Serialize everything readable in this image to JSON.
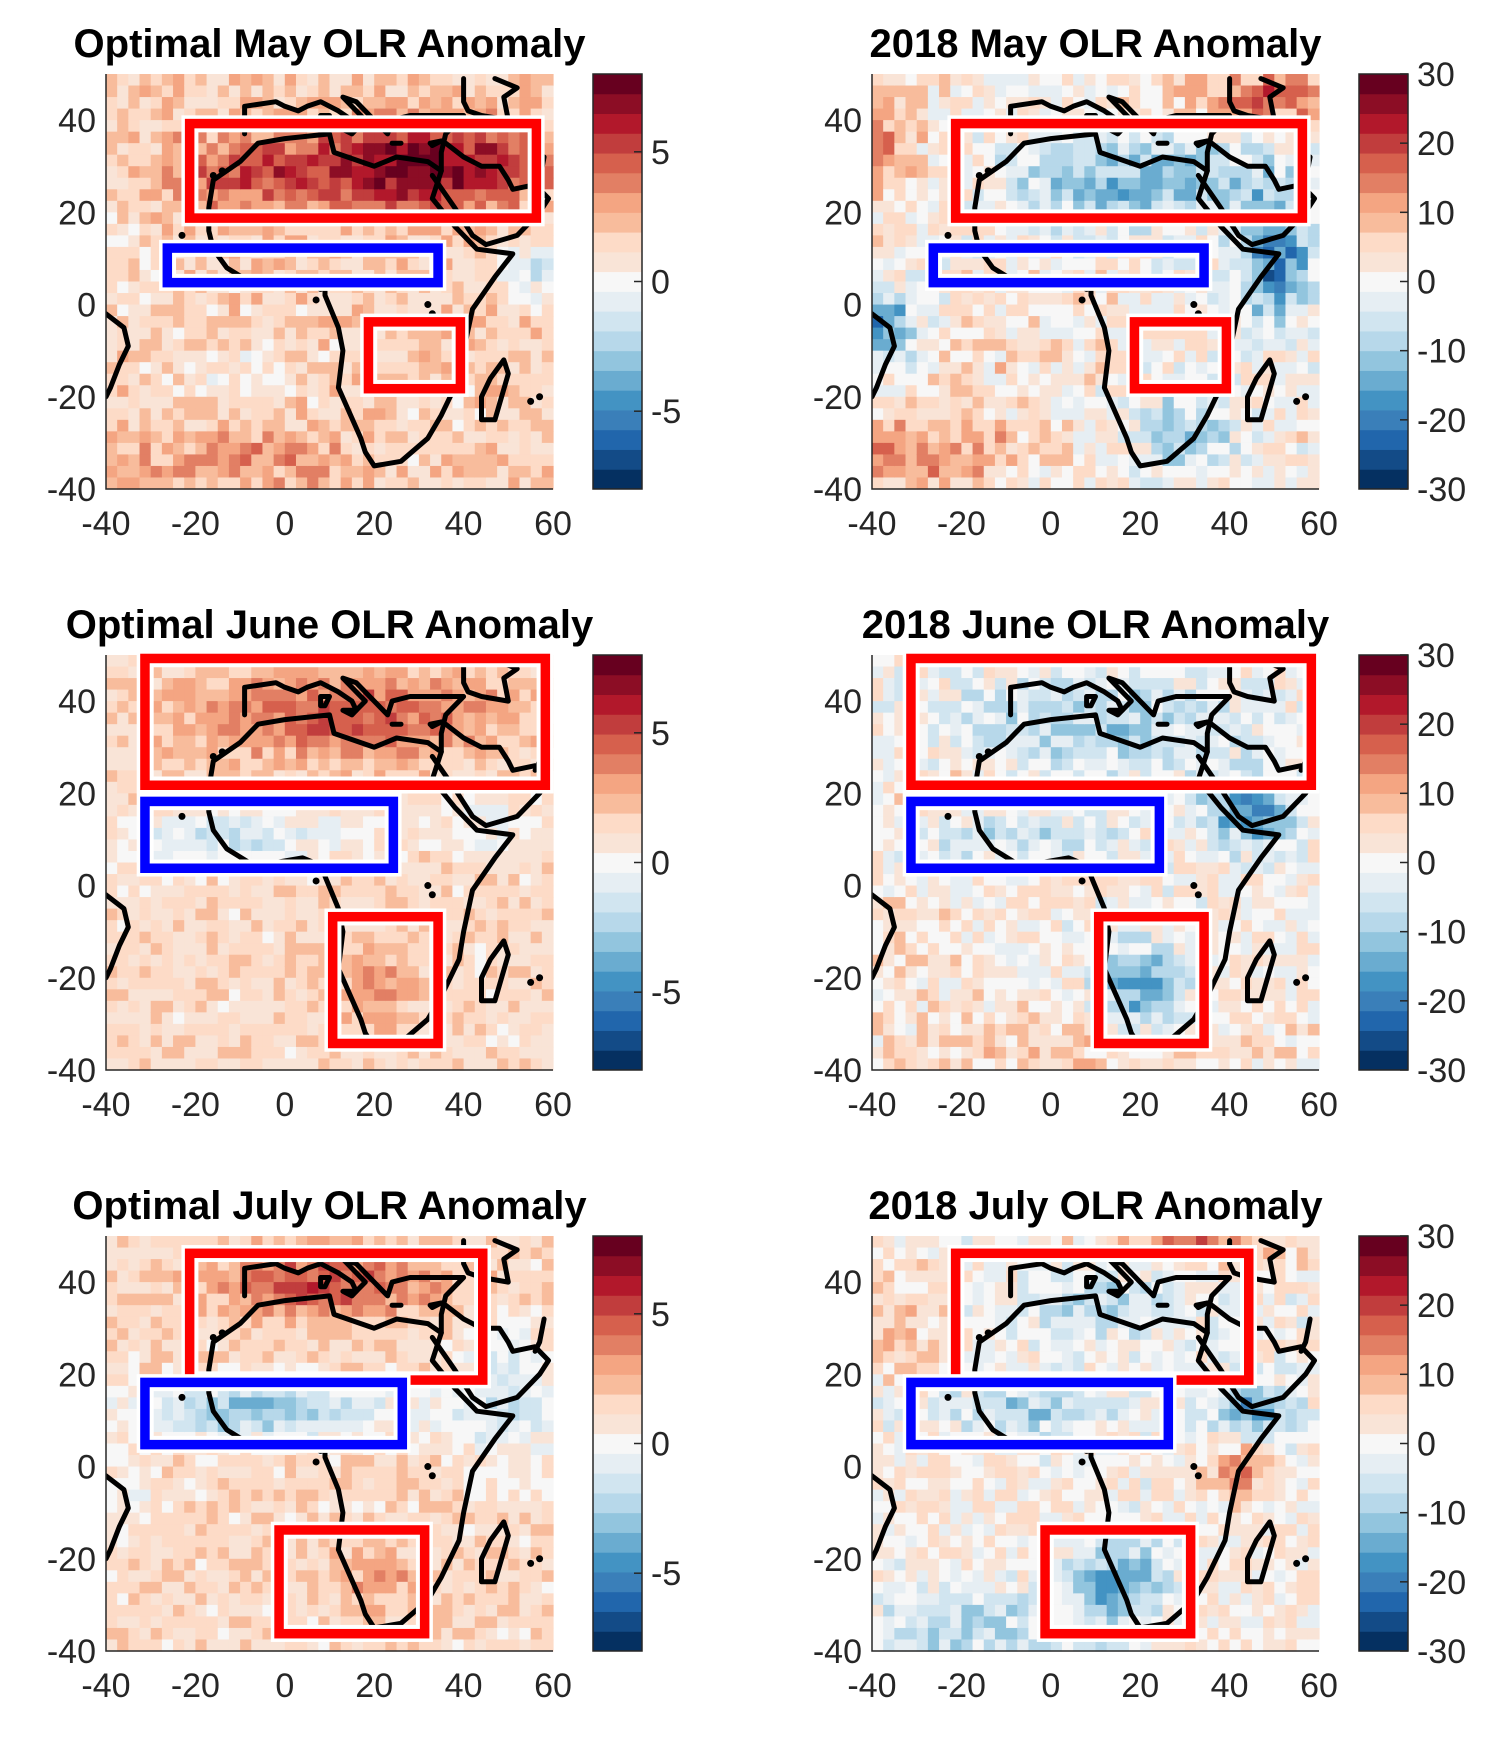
{
  "figure": {
    "coast_color": "#000000",
    "region_colors": {
      "hot": "#ff0000",
      "cool": "#0000ff",
      "outline": "#ffffff"
    },
    "colormap": [
      "#053061",
      "#134b87",
      "#2166ac",
      "#3a7fb9",
      "#4393c3",
      "#6aacd0",
      "#92c5de",
      "#b7d8ea",
      "#d1e5f0",
      "#e6eef3",
      "#f7f7f7",
      "#f9e4d7",
      "#fddbc7",
      "#f8bc9c",
      "#f4a582",
      "#e27f64",
      "#d6604d",
      "#c13d3d",
      "#b2182b",
      "#8c0d25",
      "#67001f"
    ],
    "panels": [
      {
        "id": "optimal-may",
        "title": "Optimal May OLR Anomaly",
        "theme": "may-opt",
        "colorbar_ticks": [
          "5",
          "0",
          "-5"
        ],
        "colorbar_tick_values": [
          5,
          0,
          -5
        ],
        "colorbar_range": [
          -8,
          8
        ]
      },
      {
        "id": "2018-may",
        "title": "2018 May OLR Anomaly",
        "theme": "may-18",
        "colorbar_ticks": [
          "30",
          "20",
          "10",
          "0",
          "-10",
          "-20",
          "-30"
        ],
        "colorbar_tick_values": [
          30,
          20,
          10,
          0,
          -10,
          -20,
          -30
        ],
        "colorbar_range": [
          -30,
          30
        ]
      },
      {
        "id": "optimal-june",
        "title": "Optimal June OLR Anomaly",
        "theme": "june-opt",
        "colorbar_ticks": [
          "5",
          "0",
          "-5"
        ],
        "colorbar_tick_values": [
          5,
          0,
          -5
        ],
        "colorbar_range": [
          -8,
          8
        ]
      },
      {
        "id": "2018-june",
        "title": "2018 June OLR Anomaly",
        "theme": "june-18",
        "colorbar_ticks": [
          "30",
          "20",
          "10",
          "0",
          "-10",
          "-20",
          "-30"
        ],
        "colorbar_tick_values": [
          30,
          20,
          10,
          0,
          -10,
          -20,
          -30
        ],
        "colorbar_range": [
          -30,
          30
        ]
      },
      {
        "id": "optimal-july",
        "title": "Optimal July OLR Anomaly",
        "theme": "july-opt",
        "colorbar_ticks": [
          "5",
          "0",
          "-5"
        ],
        "colorbar_tick_values": [
          5,
          0,
          -5
        ],
        "colorbar_range": [
          -8,
          8
        ]
      },
      {
        "id": "2018-july",
        "title": "2018 July OLR Anomaly",
        "theme": "july-18",
        "colorbar_ticks": [
          "30",
          "20",
          "10",
          "0",
          "-10",
          "-20",
          "-30"
        ],
        "colorbar_tick_values": [
          30,
          20,
          10,
          0,
          -10,
          -20,
          -30
        ],
        "colorbar_range": [
          -30,
          30
        ]
      }
    ]
  },
  "chart_data": [
    {
      "type": "heatmap",
      "title": "Optimal May OLR Anomaly",
      "xlim": [
        -40,
        60
      ],
      "ylim": [
        -40,
        50
      ],
      "xticks": [
        "-40",
        "-20",
        "0",
        "20",
        "40",
        "60"
      ],
      "yticks": [
        "40",
        "20",
        "0",
        "-20",
        "-40"
      ],
      "xtick_values": [
        -40,
        -20,
        0,
        20,
        40,
        60
      ],
      "ytick_values": [
        40,
        20,
        0,
        -20,
        -40
      ],
      "colorbar_range": [
        -8,
        8
      ],
      "regions": [
        {
          "box": "hot",
          "lon": [
            -20,
            55
          ],
          "lat": [
            20,
            38
          ]
        },
        {
          "box": "cool",
          "lon": [
            -25,
            33
          ],
          "lat": [
            6,
            11
          ]
        },
        {
          "box": "hot",
          "lon": [
            20,
            38
          ],
          "lat": [
            -17,
            -5
          ]
        }
      ]
    },
    {
      "type": "heatmap",
      "title": "2018 May OLR Anomaly",
      "xlim": [
        -40,
        60
      ],
      "ylim": [
        -40,
        50
      ],
      "xticks": [
        "-40",
        "-20",
        "0",
        "20",
        "40",
        "60"
      ],
      "yticks": [
        "40",
        "20",
        "0",
        "-20",
        "-40"
      ],
      "xtick_values": [
        -40,
        -20,
        0,
        20,
        40,
        60
      ],
      "ytick_values": [
        40,
        20,
        0,
        -20,
        -40
      ],
      "colorbar_range": [
        -30,
        30
      ],
      "regions": [
        {
          "box": "hot",
          "lon": [
            -20,
            55
          ],
          "lat": [
            20,
            38
          ]
        },
        {
          "box": "cool",
          "lon": [
            -25,
            33
          ],
          "lat": [
            6,
            11
          ]
        },
        {
          "box": "hot",
          "lon": [
            20,
            38
          ],
          "lat": [
            -17,
            -5
          ]
        }
      ]
    },
    {
      "type": "heatmap",
      "title": "Optimal June OLR Anomaly",
      "xlim": [
        -40,
        60
      ],
      "ylim": [
        -40,
        50
      ],
      "xticks": [
        "-40",
        "-20",
        "0",
        "20",
        "40",
        "60"
      ],
      "yticks": [
        "40",
        "20",
        "0",
        "-20",
        "-40"
      ],
      "xtick_values": [
        -40,
        -20,
        0,
        20,
        40,
        60
      ],
      "ytick_values": [
        40,
        20,
        0,
        -20,
        -40
      ],
      "colorbar_range": [
        -8,
        8
      ],
      "regions": [
        {
          "box": "hot",
          "lon": [
            -30,
            57
          ],
          "lat": [
            23,
            48
          ]
        },
        {
          "box": "cool",
          "lon": [
            -30,
            23
          ],
          "lat": [
            5,
            17
          ]
        },
        {
          "box": "hot",
          "lon": [
            12,
            33
          ],
          "lat": [
            -33,
            -8
          ]
        }
      ]
    },
    {
      "type": "heatmap",
      "title": "2018 June OLR Anomaly",
      "xlim": [
        -40,
        60
      ],
      "ylim": [
        -40,
        50
      ],
      "xticks": [
        "-40",
        "-20",
        "0",
        "20",
        "40",
        "60"
      ],
      "yticks": [
        "40",
        "20",
        "0",
        "-20",
        "-40"
      ],
      "xtick_values": [
        -40,
        -20,
        0,
        20,
        40,
        60
      ],
      "ytick_values": [
        40,
        20,
        0,
        -20,
        -40
      ],
      "colorbar_range": [
        -30,
        30
      ],
      "regions": [
        {
          "box": "hot",
          "lon": [
            -30,
            57
          ],
          "lat": [
            23,
            48
          ]
        },
        {
          "box": "cool",
          "lon": [
            -30,
            23
          ],
          "lat": [
            5,
            17
          ]
        },
        {
          "box": "hot",
          "lon": [
            12,
            33
          ],
          "lat": [
            -33,
            -8
          ]
        }
      ]
    },
    {
      "type": "heatmap",
      "title": "Optimal July OLR Anomaly",
      "xlim": [
        -40,
        60
      ],
      "ylim": [
        -40,
        50
      ],
      "xticks": [
        "-40",
        "-20",
        "0",
        "20",
        "40",
        "60"
      ],
      "yticks": [
        "40",
        "20",
        "0",
        "-20",
        "-40"
      ],
      "xtick_values": [
        -40,
        -20,
        0,
        20,
        40,
        60
      ],
      "ytick_values": [
        40,
        20,
        0,
        -20,
        -40
      ],
      "colorbar_range": [
        -8,
        8
      ],
      "regions": [
        {
          "box": "hot",
          "lon": [
            -20,
            43
          ],
          "lat": [
            20,
            45
          ]
        },
        {
          "box": "cool",
          "lon": [
            -30,
            25
          ],
          "lat": [
            6,
            17
          ]
        },
        {
          "box": "hot",
          "lon": [
            0,
            30
          ],
          "lat": [
            -35,
            -15
          ]
        }
      ]
    },
    {
      "type": "heatmap",
      "title": "2018 July OLR Anomaly",
      "xlim": [
        -40,
        60
      ],
      "ylim": [
        -40,
        50
      ],
      "xticks": [
        "-40",
        "-20",
        "0",
        "20",
        "40",
        "60"
      ],
      "yticks": [
        "40",
        "20",
        "0",
        "-20",
        "-40"
      ],
      "xtick_values": [
        -40,
        -20,
        0,
        20,
        40,
        60
      ],
      "ytick_values": [
        40,
        20,
        0,
        -20,
        -40
      ],
      "colorbar_range": [
        -30,
        30
      ],
      "regions": [
        {
          "box": "hot",
          "lon": [
            -20,
            43
          ],
          "lat": [
            20,
            45
          ]
        },
        {
          "box": "cool",
          "lon": [
            -30,
            25
          ],
          "lat": [
            6,
            17
          ]
        },
        {
          "box": "hot",
          "lon": [
            0,
            30
          ],
          "lat": [
            -35,
            -15
          ]
        }
      ]
    }
  ]
}
